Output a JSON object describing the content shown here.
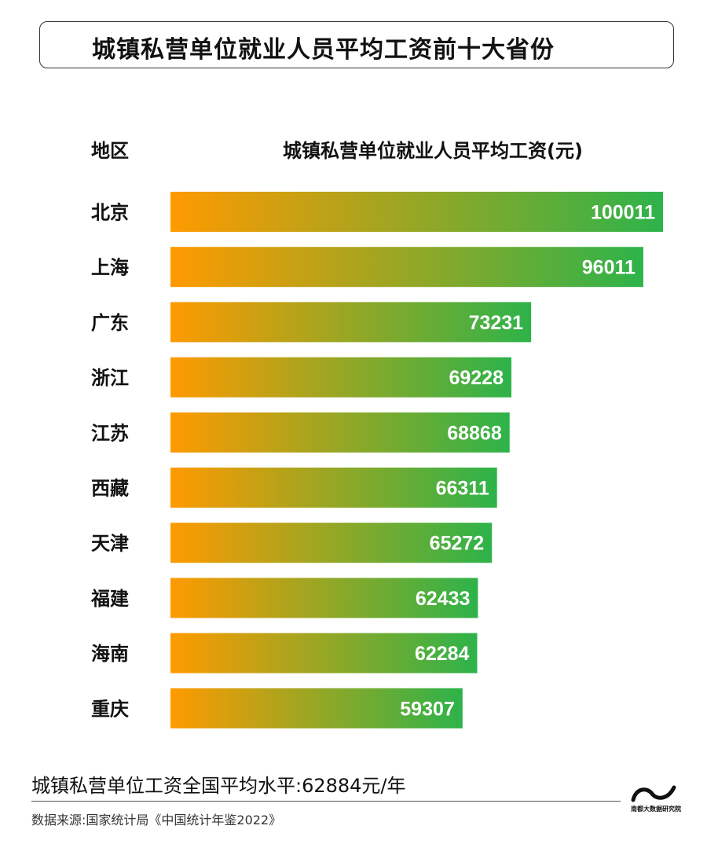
{
  "header": {
    "title": "城镇私营单位就业人员平均工资前十大省份",
    "col_region": "地区",
    "col_value": "城镇私营单位就业人员平均工资(元)"
  },
  "footer": {
    "average": "城镇私营单位工资全国平均水平:62884元/年",
    "source": "数据来源:国家统计局《中国统计年鉴2022》",
    "logo_text": "南都大数据研究院"
  },
  "colors": {
    "bar_start": "#FF9A00",
    "bar_end": "#2DB34A",
    "value_label": "#ffffff"
  },
  "chart_data": {
    "type": "bar",
    "orientation": "horizontal",
    "title": "城镇私营单位就业人员平均工资前十大省份",
    "xlabel": "城镇私营单位就业人员平均工资(元)",
    "ylabel": "地区",
    "categories": [
      "北京",
      "上海",
      "广东",
      "浙江",
      "江苏",
      "西藏",
      "天津",
      "福建",
      "海南",
      "重庆"
    ],
    "values": [
      100011,
      96011,
      73231,
      69228,
      68868,
      66311,
      65272,
      62433,
      62284,
      59307
    ],
    "grid": false
  }
}
